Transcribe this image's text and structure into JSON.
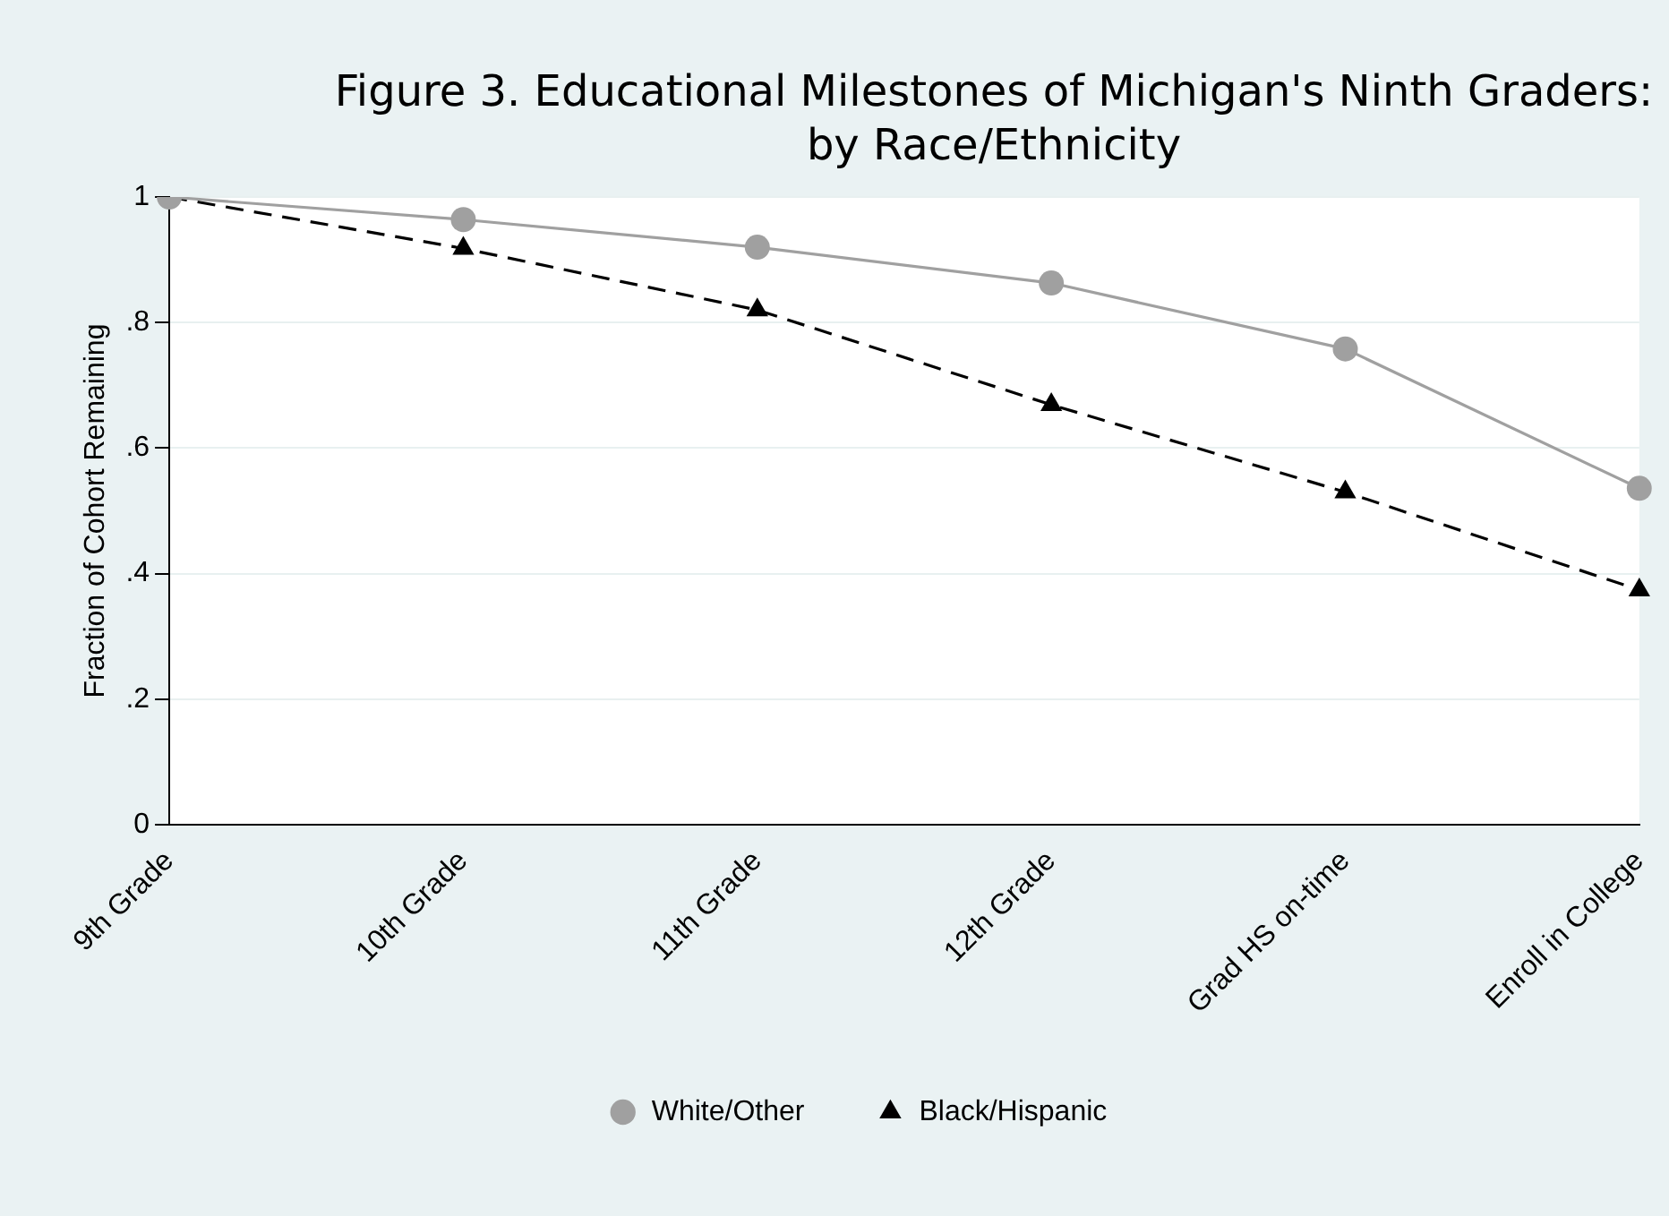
{
  "chart_data": {
    "type": "line",
    "title": "Figure 3. Educational Milestones of Michigan's Ninth Graders: by Race/Ethnicity",
    "ylabel": "Fraction of Cohort Remaining",
    "categories": [
      "9th Grade",
      "10th Grade",
      "11th Grade",
      "12th Grade",
      "Grad HS on-time",
      "Enroll in College"
    ],
    "series": [
      {
        "name": "White/Other",
        "color": "#a0a0a0",
        "values": [
          1.0,
          0.964,
          0.92,
          0.863,
          0.758,
          0.536
        ],
        "marker": "circle",
        "line_style": "solid"
      },
      {
        "name": "Black/Hispanic",
        "color": "#000000",
        "values": [
          1.0,
          0.918,
          0.82,
          0.669,
          0.53,
          0.374
        ],
        "marker": "triangle",
        "line_style": "dashed"
      }
    ],
    "ylim": [
      0,
      1
    ],
    "yticks": [
      0,
      {
        "value": 0.2,
        "label": ".2"
      },
      {
        "value": 0.4,
        "label": ".4"
      },
      {
        "value": 0.6,
        "label": ".6"
      },
      {
        "value": 0.8,
        "label": ".8"
      },
      1
    ],
    "grid": "y",
    "legend": "bottom"
  }
}
